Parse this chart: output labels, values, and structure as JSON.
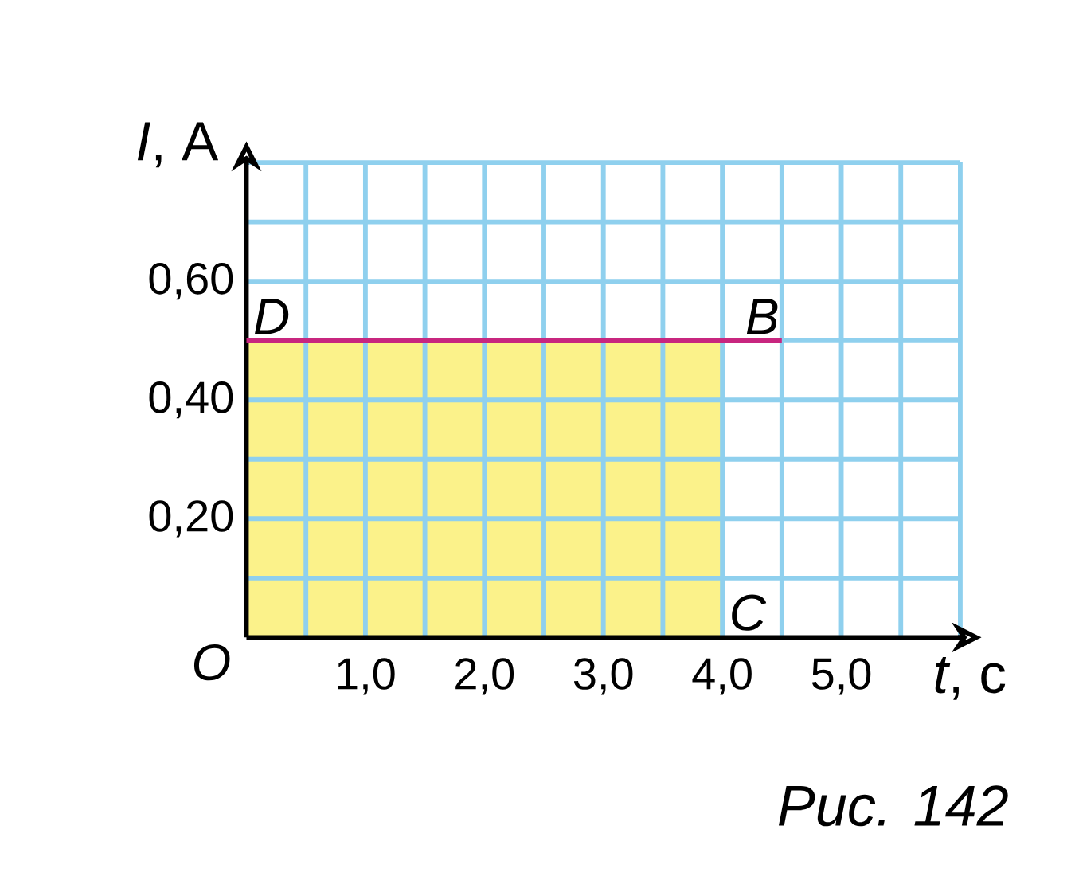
{
  "chart_data": {
    "type": "line",
    "xlabel": "*t*, c",
    "ylabel": "*I*, A",
    "xlim": [
      0,
      6
    ],
    "ylim": [
      0,
      0.8
    ],
    "xticks": [
      {
        "value": 0.5,
        "label": null
      },
      {
        "value": 1,
        "label": "1,0"
      },
      {
        "value": 1.5,
        "label": null
      },
      {
        "value": 2,
        "label": "2,0"
      },
      {
        "value": 2.5,
        "label": null
      },
      {
        "value": 3,
        "label": "3,0"
      },
      {
        "value": 3.5,
        "label": null
      },
      {
        "value": 4,
        "label": "4,0"
      },
      {
        "value": 4.5,
        "label": null
      },
      {
        "value": 5,
        "label": "5,0"
      },
      {
        "value": 5.5,
        "label": null
      },
      {
        "value": 6,
        "label": null
      }
    ],
    "yticks": [
      {
        "value": 0.1,
        "label": null
      },
      {
        "value": 0.2,
        "label": "0,20"
      },
      {
        "value": 0.3,
        "label": null
      },
      {
        "value": 0.4,
        "label": "0,40"
      },
      {
        "value": 0.5,
        "label": null
      },
      {
        "value": 0.6,
        "label": "0,60"
      },
      {
        "value": 0.7,
        "label": null
      },
      {
        "value": 0.8,
        "label": null
      }
    ],
    "grid": true,
    "marker": "none",
    "series": [
      {
        "type": "area",
        "color": "#fbf28a",
        "x": [
          0,
          4
        ],
        "values": [
          0.5,
          0.5
        ]
      },
      {
        "type": "line",
        "color": "#c8267f",
        "x": [
          0,
          4.5
        ],
        "values": [
          0.5,
          0.5
        ]
      }
    ],
    "annotations": [
      {
        "text": "D",
        "x": 0,
        "y": 0.5
      },
      {
        "text": "B",
        "x": 4.5,
        "y": 0.5
      },
      {
        "text": "C",
        "x": 4,
        "y": 0
      },
      {
        "text": "O",
        "x": 0,
        "y": 0
      },
      "Рис. 142"
    ]
  }
}
